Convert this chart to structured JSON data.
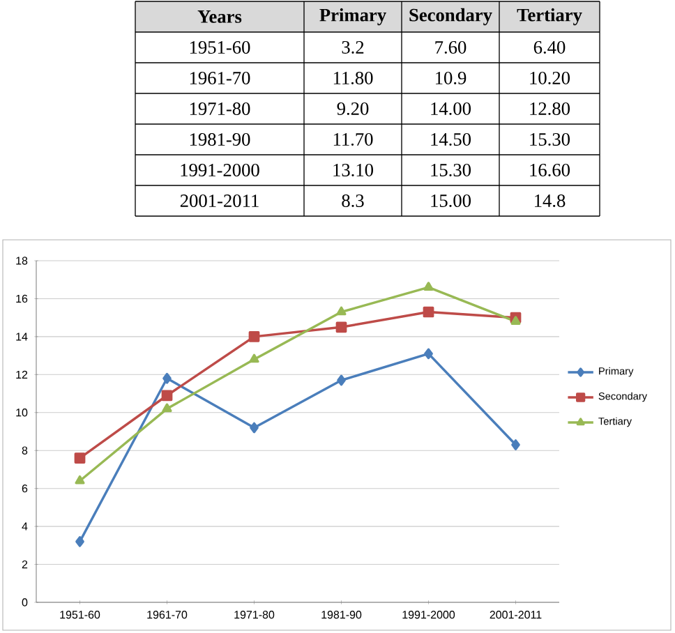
{
  "chart_data": [
    {
      "type": "other",
      "xlabel": "Years",
      "categories": [
        "1951-60",
        "1961-70",
        "1971-80",
        "1981-90",
        "1991-2000",
        "2001-2011"
      ],
      "series": [
        {
          "name": "Primary",
          "values": [
            3.2,
            11.8,
            9.2,
            11.7,
            13.1,
            8.3
          ],
          "value_labels": [
            "3.2",
            "11.80",
            "9.20",
            "11.70",
            "13.10",
            "8.3"
          ]
        },
        {
          "name": "Secondary",
          "values": [
            7.6,
            10.9,
            14.0,
            14.5,
            15.3,
            15.0
          ],
          "value_labels": [
            "7.60",
            "10.9",
            "14.00",
            "14.50",
            "15.30",
            "15.00"
          ]
        },
        {
          "name": "Tertiary",
          "values": [
            6.4,
            10.2,
            12.8,
            15.3,
            16.6,
            14.8
          ],
          "value_labels": [
            "6.40",
            "10.20",
            "12.80",
            "15.30",
            "16.60",
            "14.8"
          ]
        }
      ]
    },
    {
      "type": "line",
      "categories": [
        "1951-60",
        "1961-70",
        "1971-80",
        "1981-90",
        "1991-2000",
        "2001-2011"
      ],
      "series": [
        {
          "name": "Primary",
          "color": "#4a7ebb",
          "marker": "diamond",
          "values": [
            3.2,
            11.8,
            9.2,
            11.7,
            13.1,
            8.3
          ]
        },
        {
          "name": "Secondary",
          "color": "#be4b48",
          "marker": "square",
          "values": [
            7.6,
            10.9,
            14.0,
            14.5,
            15.3,
            15.0
          ]
        },
        {
          "name": "Tertiary",
          "color": "#98b954",
          "marker": "triangle",
          "values": [
            6.4,
            10.2,
            12.8,
            15.3,
            16.6,
            14.8
          ]
        }
      ],
      "ylim": [
        0,
        18
      ],
      "yticks": [
        0,
        2,
        4,
        6,
        8,
        10,
        12,
        14,
        16,
        18
      ],
      "grid": "y",
      "legend": "right"
    }
  ]
}
